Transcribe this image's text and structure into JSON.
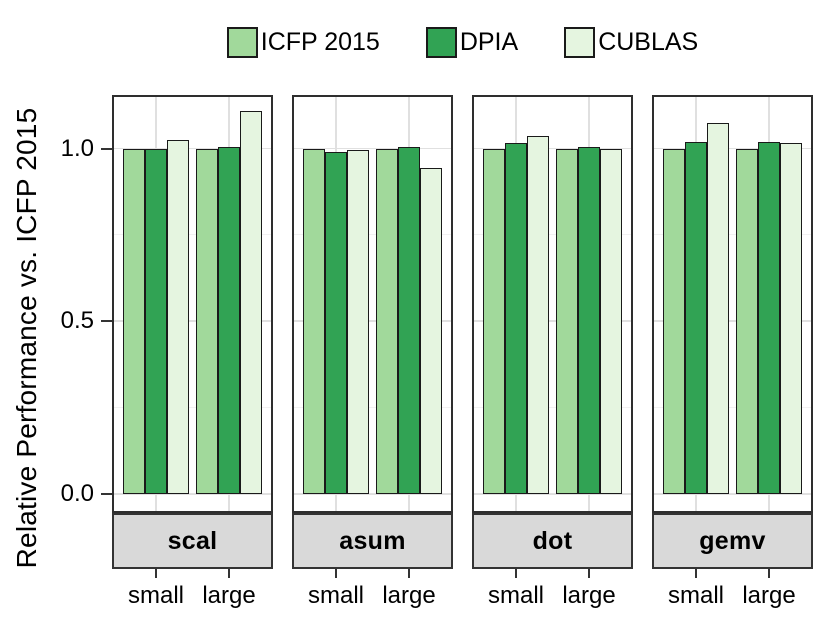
{
  "chart_data": {
    "type": "bar",
    "title": "",
    "ylabel": "Relative Performance vs. ICFP 2015",
    "xlabel": "",
    "ylim": [
      -0.055,
      1.155
    ],
    "grid": true,
    "legend_position": "top",
    "yticks": [
      {
        "label": "0.0",
        "value": 0.0
      },
      {
        "label": "0.5",
        "value": 0.5
      },
      {
        "label": "1.0",
        "value": 1.0
      }
    ],
    "minor_gridlines": [
      0.25,
      0.75
    ],
    "facets": [
      "scal",
      "asum",
      "dot",
      "gemv"
    ],
    "categories": [
      "small",
      "large"
    ],
    "series": [
      {
        "name": "ICFP 2015",
        "color": "#A1D99B",
        "values": {
          "scal": [
            1.0,
            1.0
          ],
          "asum": [
            1.0,
            1.0
          ],
          "dot": [
            1.0,
            1.0
          ],
          "gemv": [
            1.0,
            1.0
          ]
        }
      },
      {
        "name": "DPIA",
        "color": "#31A354",
        "values": {
          "scal": [
            1.0,
            1.005
          ],
          "asum": [
            0.99,
            1.005
          ],
          "dot": [
            1.015,
            1.005
          ],
          "gemv": [
            1.02,
            1.02
          ]
        }
      },
      {
        "name": "CUBLAS",
        "color": "#E5F5E0",
        "values": {
          "scal": [
            1.025,
            1.11
          ],
          "asum": [
            0.995,
            0.945
          ],
          "dot": [
            1.035,
            1.0
          ],
          "gemv": [
            1.075,
            1.015
          ]
        }
      }
    ]
  },
  "colors": {
    "bar_border": "#1a1a1a",
    "panel_border": "#2e2e2e",
    "strip_background": "#d9d9d9",
    "major_gridline": "#e0e0e0",
    "minor_gridline": "#f1f1f1",
    "text": "#000000",
    "background": "#ffffff"
  }
}
